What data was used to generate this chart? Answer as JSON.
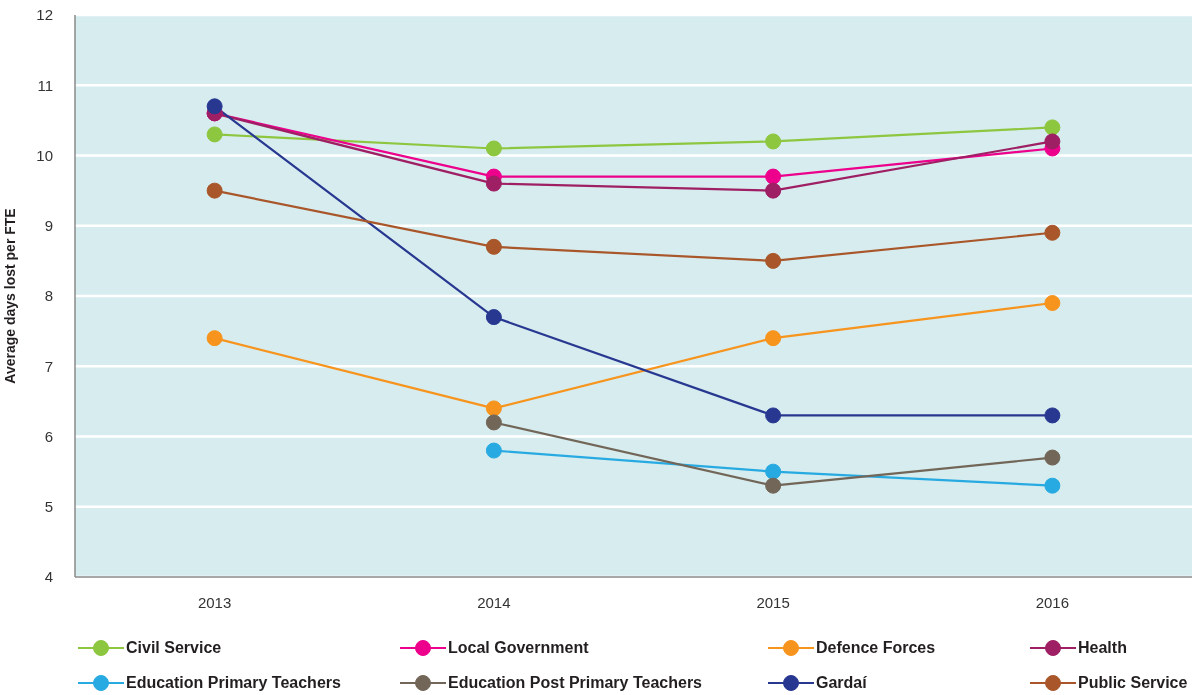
{
  "chart_data": {
    "type": "line",
    "ylabel": "Average days lost per FTE",
    "categories": [
      "2013",
      "2014",
      "2015",
      "2016"
    ],
    "series": [
      {
        "name": "Civil Service",
        "color": "#8dc63f",
        "values": [
          10.3,
          10.1,
          10.2,
          10.4
        ]
      },
      {
        "name": "Local Government",
        "color": "#ec008c",
        "values": [
          10.6,
          9.7,
          9.7,
          10.1
        ]
      },
      {
        "name": "Defence Forces",
        "color": "#f7941d",
        "values": [
          7.4,
          6.4,
          7.4,
          7.9
        ]
      },
      {
        "name": "Health",
        "color": "#9e1f63",
        "values": [
          10.6,
          9.6,
          9.5,
          10.2
        ]
      },
      {
        "name": "Education Primary Teachers",
        "color": "#27aae1",
        "values": [
          null,
          5.8,
          5.5,
          5.3
        ]
      },
      {
        "name": "Education Post Primary Teachers",
        "color": "#726658",
        "values": [
          null,
          6.2,
          5.3,
          5.7
        ]
      },
      {
        "name": "Gardaí",
        "color": "#283891",
        "values": [
          10.7,
          7.7,
          6.3,
          6.3
        ]
      },
      {
        "name": "Public Service",
        "color": "#a9572a",
        "values": [
          9.5,
          8.7,
          8.5,
          8.9
        ]
      }
    ],
    "ylim": [
      4,
      12
    ],
    "yticks": [
      4,
      5,
      6,
      7,
      8,
      9,
      10,
      11,
      12
    ],
    "grid": "y",
    "legend": "bottom",
    "marker": "circle",
    "line_style": "solid"
  }
}
